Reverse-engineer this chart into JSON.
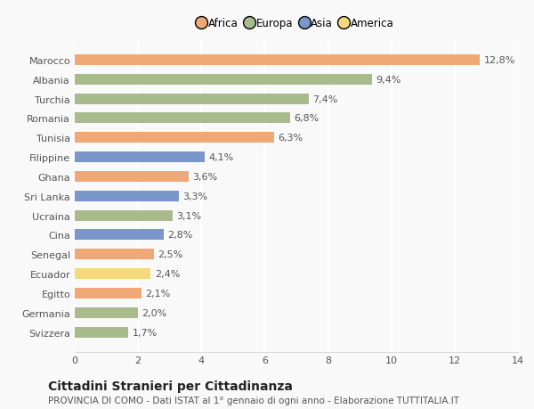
{
  "categories": [
    "Svizzera",
    "Germania",
    "Egitto",
    "Ecuador",
    "Senegal",
    "Cina",
    "Ucraina",
    "Sri Lanka",
    "Ghana",
    "Filippine",
    "Tunisia",
    "Romania",
    "Turchia",
    "Albania",
    "Marocco"
  ],
  "values": [
    1.7,
    2.0,
    2.1,
    2.4,
    2.5,
    2.8,
    3.1,
    3.3,
    3.6,
    4.1,
    6.3,
    6.8,
    7.4,
    9.4,
    12.8
  ],
  "colors": [
    "#a8bb8c",
    "#a8bb8c",
    "#f0a877",
    "#f5d97a",
    "#f0a877",
    "#7b96c8",
    "#a8bb8c",
    "#7b96c8",
    "#f0a877",
    "#7b96c8",
    "#f0a877",
    "#a8bb8c",
    "#a8bb8c",
    "#a8bb8c",
    "#f0a877"
  ],
  "labels": [
    "1,7%",
    "2,0%",
    "2,1%",
    "2,4%",
    "2,5%",
    "2,8%",
    "3,1%",
    "3,3%",
    "3,6%",
    "4,1%",
    "6,3%",
    "6,8%",
    "7,4%",
    "9,4%",
    "12,8%"
  ],
  "legend": [
    {
      "label": "Africa",
      "color": "#f0a877"
    },
    {
      "label": "Europa",
      "color": "#a8bb8c"
    },
    {
      "label": "Asia",
      "color": "#7b96c8"
    },
    {
      "label": "America",
      "color": "#f5d97a"
    }
  ],
  "xlim": [
    0,
    14
  ],
  "xticks": [
    0,
    2,
    4,
    6,
    8,
    10,
    12,
    14
  ],
  "title": "Cittadini Stranieri per Cittadinanza",
  "subtitle": "PROVINCIA DI COMO - Dati ISTAT al 1° gennaio di ogni anno - Elaborazione TUTTITALIA.IT",
  "background_color": "#f9f9f9",
  "bar_edge_color": "none",
  "grid_color": "#ffffff",
  "title_fontsize": 10,
  "subtitle_fontsize": 7.5,
  "label_fontsize": 8,
  "tick_fontsize": 8,
  "bar_height": 0.55
}
